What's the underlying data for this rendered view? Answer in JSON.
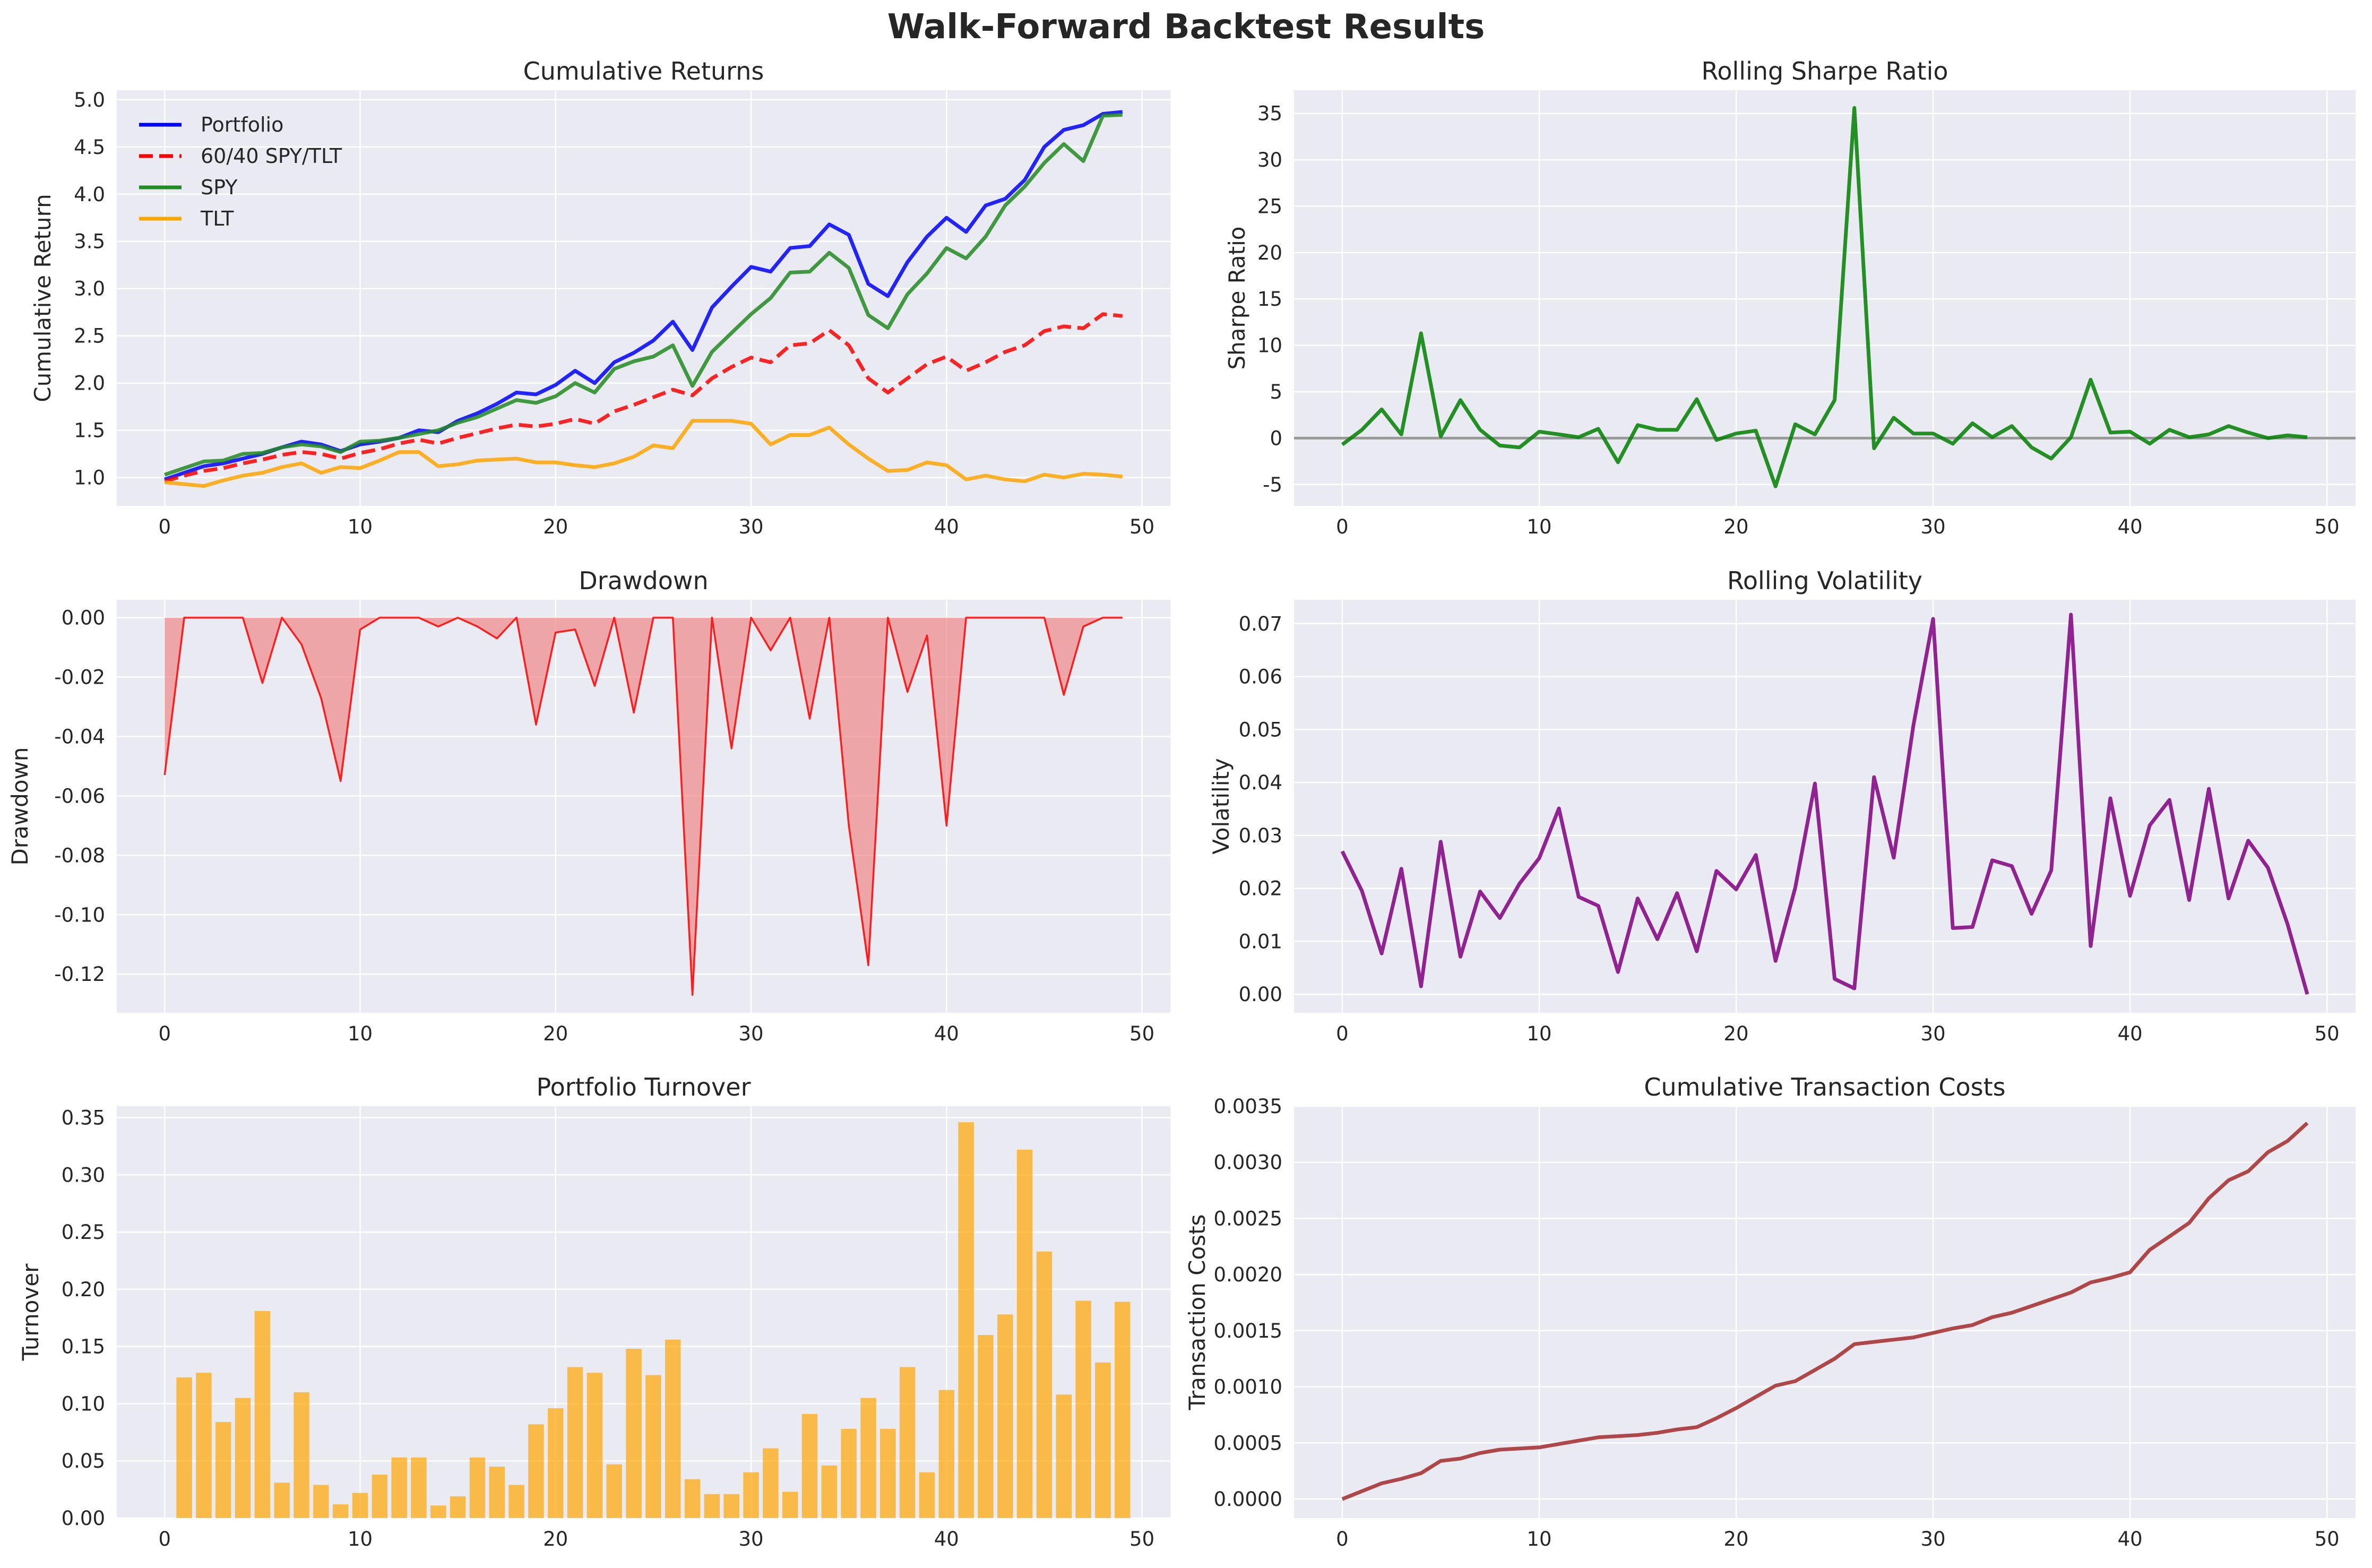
{
  "figure": {
    "title": "Walk-Forward Backtest Results"
  },
  "chart_data": [
    {
      "id": "cumulative-returns",
      "type": "line",
      "title": "Cumulative Returns",
      "xlabel": "",
      "ylabel": "Cumulative Return",
      "xlim": [
        -2.45,
        51.45
      ],
      "ylim": [
        0.7,
        5.1
      ],
      "xticks": [
        0,
        10,
        20,
        30,
        40,
        50
      ],
      "yticks": [
        1.0,
        1.5,
        2.0,
        2.5,
        3.0,
        3.5,
        4.0,
        4.5,
        5.0
      ],
      "ytick_decimals": 1,
      "grid": true,
      "legend": "upper-left",
      "x": [
        0,
        1,
        2,
        3,
        4,
        5,
        6,
        7,
        8,
        9,
        10,
        11,
        12,
        13,
        14,
        15,
        16,
        17,
        18,
        19,
        20,
        21,
        22,
        23,
        24,
        25,
        26,
        27,
        28,
        29,
        30,
        31,
        32,
        33,
        34,
        35,
        36,
        37,
        38,
        39,
        40,
        41,
        42,
        43,
        44,
        45,
        46,
        47,
        48,
        49
      ],
      "series": [
        {
          "name": "Portfolio",
          "color": "#0000ff",
          "dash": "solid",
          "values": [
            0.98,
            1.05,
            1.12,
            1.15,
            1.2,
            1.25,
            1.32,
            1.38,
            1.35,
            1.28,
            1.35,
            1.38,
            1.42,
            1.5,
            1.48,
            1.6,
            1.68,
            1.78,
            1.9,
            1.88,
            1.98,
            2.13,
            2.0,
            2.22,
            2.32,
            2.45,
            2.65,
            2.35,
            2.8,
            3.02,
            3.23,
            3.18,
            3.43,
            3.45,
            3.68,
            3.57,
            3.05,
            2.92,
            3.28,
            3.55,
            3.75,
            3.6,
            3.88,
            3.95,
            4.15,
            4.5,
            4.68,
            4.73,
            4.85,
            4.87
          ]
        },
        {
          "name": "60/40 SPY/TLT",
          "color": "#ff0000",
          "dash": "dashed",
          "values": [
            0.96,
            1.02,
            1.07,
            1.1,
            1.15,
            1.19,
            1.24,
            1.27,
            1.25,
            1.2,
            1.26,
            1.3,
            1.36,
            1.4,
            1.36,
            1.42,
            1.47,
            1.52,
            1.56,
            1.54,
            1.57,
            1.62,
            1.57,
            1.7,
            1.77,
            1.85,
            1.93,
            1.87,
            2.05,
            2.17,
            2.27,
            2.22,
            2.4,
            2.42,
            2.56,
            2.4,
            2.05,
            1.9,
            2.05,
            2.2,
            2.28,
            2.13,
            2.22,
            2.33,
            2.4,
            2.55,
            2.6,
            2.58,
            2.73,
            2.71
          ]
        },
        {
          "name": "SPY",
          "color": "#228b22",
          "dash": "solid",
          "values": [
            1.03,
            1.1,
            1.17,
            1.18,
            1.25,
            1.26,
            1.32,
            1.35,
            1.33,
            1.27,
            1.38,
            1.39,
            1.42,
            1.46,
            1.5,
            1.58,
            1.64,
            1.73,
            1.82,
            1.79,
            1.86,
            2.0,
            1.9,
            2.15,
            2.23,
            2.28,
            2.4,
            1.97,
            2.33,
            2.53,
            2.73,
            2.9,
            3.17,
            3.18,
            3.38,
            3.22,
            2.72,
            2.58,
            2.94,
            3.16,
            3.43,
            3.32,
            3.55,
            3.88,
            4.08,
            4.33,
            4.53,
            4.35,
            4.83,
            4.84
          ]
        },
        {
          "name": "TLT",
          "color": "#ffa500",
          "dash": "solid",
          "values": [
            0.95,
            0.93,
            0.91,
            0.97,
            1.02,
            1.05,
            1.11,
            1.15,
            1.05,
            1.11,
            1.1,
            1.18,
            1.27,
            1.27,
            1.12,
            1.14,
            1.18,
            1.19,
            1.2,
            1.16,
            1.16,
            1.13,
            1.11,
            1.15,
            1.22,
            1.34,
            1.31,
            1.6,
            1.6,
            1.6,
            1.57,
            1.35,
            1.45,
            1.45,
            1.53,
            1.35,
            1.2,
            1.07,
            1.08,
            1.16,
            1.13,
            0.98,
            1.02,
            0.98,
            0.96,
            1.03,
            1.0,
            1.04,
            1.03,
            1.01
          ]
        }
      ]
    },
    {
      "id": "rolling-sharpe",
      "type": "line",
      "title": "Rolling Sharpe Ratio",
      "xlabel": "",
      "ylabel": "Sharpe Ratio",
      "xlim": [
        -2.45,
        51.45
      ],
      "ylim": [
        -7.3,
        37.5
      ],
      "xticks": [
        0,
        10,
        20,
        30,
        40,
        50
      ],
      "yticks": [
        -5,
        0,
        5,
        10,
        15,
        20,
        25,
        30,
        35
      ],
      "ytick_decimals": 0,
      "grid": true,
      "hline": {
        "y": 0,
        "color": "#999999"
      },
      "x": [
        0,
        1,
        2,
        3,
        4,
        5,
        6,
        7,
        8,
        9,
        10,
        11,
        12,
        13,
        14,
        15,
        16,
        17,
        18,
        19,
        20,
        21,
        22,
        23,
        24,
        25,
        26,
        27,
        28,
        29,
        30,
        31,
        32,
        33,
        34,
        35,
        36,
        37,
        38,
        39,
        40,
        41,
        42,
        43,
        44,
        45,
        46,
        47,
        48,
        49
      ],
      "series": [
        {
          "name": "",
          "color": "#008000",
          "dash": "solid",
          "values": [
            -0.7,
            0.9,
            3.1,
            0.4,
            11.3,
            0.2,
            4.1,
            0.9,
            -0.8,
            -1.0,
            0.7,
            0.4,
            0.1,
            1.0,
            -2.6,
            1.4,
            0.9,
            0.9,
            4.2,
            -0.2,
            0.5,
            0.8,
            -5.2,
            1.5,
            0.4,
            4.1,
            35.6,
            -1.1,
            2.2,
            0.5,
            0.5,
            -0.6,
            1.6,
            0.1,
            1.3,
            -1.0,
            -2.2,
            0.1,
            6.3,
            0.6,
            0.7,
            -0.6,
            0.9,
            0.1,
            0.4,
            1.3,
            0.6,
            0.0,
            0.3,
            0.1
          ]
        }
      ]
    },
    {
      "id": "drawdown",
      "type": "area",
      "title": "Drawdown",
      "xlabel": "",
      "ylabel": "Drawdown",
      "xlim": [
        -2.45,
        51.45
      ],
      "ylim": [
        -0.133,
        0.006
      ],
      "xticks": [
        0,
        10,
        20,
        30,
        40,
        50
      ],
      "yticks": [
        -0.12,
        -0.1,
        -0.08,
        -0.06,
        -0.04,
        -0.02,
        0.0
      ],
      "ytick_decimals": 2,
      "grid": true,
      "fill_color": "#f08080",
      "x": [
        0,
        1,
        2,
        3,
        4,
        5,
        6,
        7,
        8,
        9,
        10,
        11,
        12,
        13,
        14,
        15,
        16,
        17,
        18,
        19,
        20,
        21,
        22,
        23,
        24,
        25,
        26,
        27,
        28,
        29,
        30,
        31,
        32,
        33,
        34,
        35,
        36,
        37,
        38,
        39,
        40,
        41,
        42,
        43,
        44,
        45,
        46,
        47,
        48,
        49
      ],
      "series": [
        {
          "name": "",
          "color": "#ff0000",
          "dash": "solid",
          "values": [
            -0.053,
            0.0,
            0.0,
            0.0,
            0.0,
            -0.022,
            0.0,
            -0.009,
            -0.027,
            -0.055,
            -0.004,
            0.0,
            0.0,
            0.0,
            -0.003,
            0.0,
            -0.003,
            -0.007,
            0.0,
            -0.036,
            -0.005,
            -0.004,
            -0.023,
            0.0,
            -0.032,
            0.0,
            0.0,
            -0.127,
            0.0,
            -0.044,
            0.0,
            -0.011,
            0.0,
            -0.034,
            0.0,
            -0.07,
            -0.117,
            0.0,
            -0.025,
            -0.006,
            -0.07,
            0.0,
            0.0,
            0.0,
            0.0,
            0.0,
            -0.026,
            -0.003,
            0.0,
            0.0
          ]
        }
      ]
    },
    {
      "id": "rolling-volatility",
      "type": "line",
      "title": "Rolling Volatility",
      "xlabel": "",
      "ylabel": "Volatility",
      "xlim": [
        -2.45,
        51.45
      ],
      "ylim": [
        -0.0035,
        0.0745
      ],
      "xticks": [
        0,
        10,
        20,
        30,
        40,
        50
      ],
      "yticks": [
        0.0,
        0.01,
        0.02,
        0.03,
        0.04,
        0.05,
        0.06,
        0.07
      ],
      "ytick_decimals": 2,
      "grid": true,
      "x": [
        0,
        1,
        2,
        3,
        4,
        5,
        6,
        7,
        8,
        9,
        10,
        11,
        12,
        13,
        14,
        15,
        16,
        17,
        18,
        19,
        20,
        21,
        22,
        23,
        24,
        25,
        26,
        27,
        28,
        29,
        30,
        31,
        32,
        33,
        34,
        35,
        36,
        37,
        38,
        39,
        40,
        41,
        42,
        43,
        44,
        45,
        46,
        47,
        48,
        49
      ],
      "series": [
        {
          "name": "",
          "color": "#800080",
          "dash": "solid",
          "values": [
            0.027,
            0.0195,
            0.0077,
            0.0237,
            0.0015,
            0.0288,
            0.0071,
            0.0194,
            0.0144,
            0.0209,
            0.0257,
            0.0351,
            0.0184,
            0.0167,
            0.0042,
            0.0181,
            0.0104,
            0.0191,
            0.0081,
            0.0233,
            0.0198,
            0.0263,
            0.0063,
            0.0201,
            0.0398,
            0.0029,
            0.0011,
            0.041,
            0.0258,
            0.0508,
            0.0709,
            0.0125,
            0.0127,
            0.0253,
            0.0242,
            0.0152,
            0.0234,
            0.0717,
            0.0091,
            0.037,
            0.0186,
            0.0319,
            0.0367,
            0.0178,
            0.0388,
            0.0181,
            0.029,
            0.0239,
            0.0132,
            0.0
          ]
        }
      ]
    },
    {
      "id": "portfolio-turnover",
      "type": "bar",
      "title": "Portfolio Turnover",
      "xlabel": "",
      "ylabel": "Turnover",
      "xlim": [
        -2.45,
        51.45
      ],
      "ylim": [
        0.0,
        0.36
      ],
      "xticks": [
        0,
        10,
        20,
        30,
        40,
        50
      ],
      "yticks": [
        0.0,
        0.05,
        0.1,
        0.15,
        0.2,
        0.25,
        0.3,
        0.35
      ],
      "ytick_decimals": 2,
      "grid": true,
      "bar_width": 0.8,
      "color": "#ffa500",
      "x": [
        0,
        1,
        2,
        3,
        4,
        5,
        6,
        7,
        8,
        9,
        10,
        11,
        12,
        13,
        14,
        15,
        16,
        17,
        18,
        19,
        20,
        21,
        22,
        23,
        24,
        25,
        26,
        27,
        28,
        29,
        30,
        31,
        32,
        33,
        34,
        35,
        36,
        37,
        38,
        39,
        40,
        41,
        42,
        43,
        44,
        45,
        46,
        47,
        48,
        49
      ],
      "values": [
        0.0,
        0.123,
        0.127,
        0.084,
        0.105,
        0.181,
        0.031,
        0.11,
        0.029,
        0.012,
        0.022,
        0.038,
        0.053,
        0.053,
        0.011,
        0.019,
        0.053,
        0.045,
        0.029,
        0.082,
        0.096,
        0.132,
        0.127,
        0.047,
        0.148,
        0.125,
        0.156,
        0.034,
        0.021,
        0.021,
        0.04,
        0.061,
        0.023,
        0.091,
        0.046,
        0.078,
        0.105,
        0.078,
        0.132,
        0.04,
        0.112,
        0.346,
        0.16,
        0.178,
        0.322,
        0.233,
        0.108,
        0.19,
        0.136,
        0.189
      ]
    },
    {
      "id": "cumulative-transaction-costs",
      "type": "line",
      "title": "Cumulative Transaction Costs",
      "xlabel": "",
      "ylabel": "Transaction Costs",
      "xlim": [
        -2.45,
        51.45
      ],
      "ylim": [
        -0.00017,
        0.0035
      ],
      "xticks": [
        0,
        10,
        20,
        30,
        40,
        50
      ],
      "yticks": [
        0.0,
        0.0005,
        0.001,
        0.0015,
        0.002,
        0.0025,
        0.003,
        0.0035
      ],
      "ytick_decimals": 4,
      "grid": true,
      "x": [
        0,
        1,
        2,
        3,
        4,
        5,
        6,
        7,
        8,
        9,
        10,
        11,
        12,
        13,
        14,
        15,
        16,
        17,
        18,
        19,
        20,
        21,
        22,
        23,
        24,
        25,
        26,
        27,
        28,
        29,
        30,
        31,
        32,
        33,
        34,
        35,
        36,
        37,
        38,
        39,
        40,
        41,
        42,
        43,
        44,
        45,
        46,
        47,
        48,
        49
      ],
      "series": [
        {
          "name": "",
          "color": "#a52a2a",
          "dash": "solid",
          "values": [
            0.0,
            7e-05,
            0.00014,
            0.00018,
            0.00023,
            0.00034,
            0.00036,
            0.00041,
            0.00044,
            0.00045,
            0.00046,
            0.00049,
            0.00052,
            0.00055,
            0.00056,
            0.00057,
            0.00059,
            0.00062,
            0.00064,
            0.00072,
            0.00081,
            0.00091,
            0.00101,
            0.00105,
            0.00115,
            0.00125,
            0.00138,
            0.0014,
            0.00142,
            0.00144,
            0.00148,
            0.00152,
            0.00155,
            0.00162,
            0.00166,
            0.00172,
            0.00178,
            0.00184,
            0.00193,
            0.00197,
            0.00202,
            0.00222,
            0.00234,
            0.00246,
            0.00268,
            0.00284,
            0.00292,
            0.00309,
            0.00319,
            0.00335
          ]
        }
      ]
    }
  ]
}
